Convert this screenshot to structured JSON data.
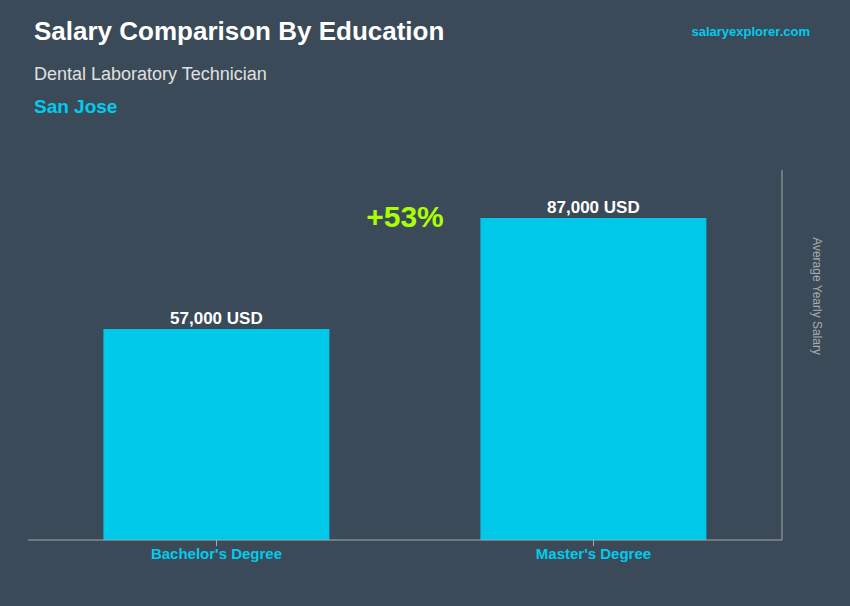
{
  "chart_data": {
    "type": "bar",
    "title": "Salary Comparison By Education",
    "subtitle": "Dental Laboratory Technician",
    "y_label": "Average Yearly Salary",
    "annotations": [
      "San Jose",
      "+53%",
      "salaryexplorer.com"
    ],
    "categories": [
      "Bachelor's Degree",
      "Master's Degree"
    ],
    "values": [
      57000,
      87000
    ],
    "value_labels": [
      "57,000 USD",
      "87,000 USD"
    ],
    "color": "#00c8e8",
    "ylim": [
      0,
      100000
    ],
    "data_labels": true,
    "tick_labels": "x",
    "grid": false
  }
}
